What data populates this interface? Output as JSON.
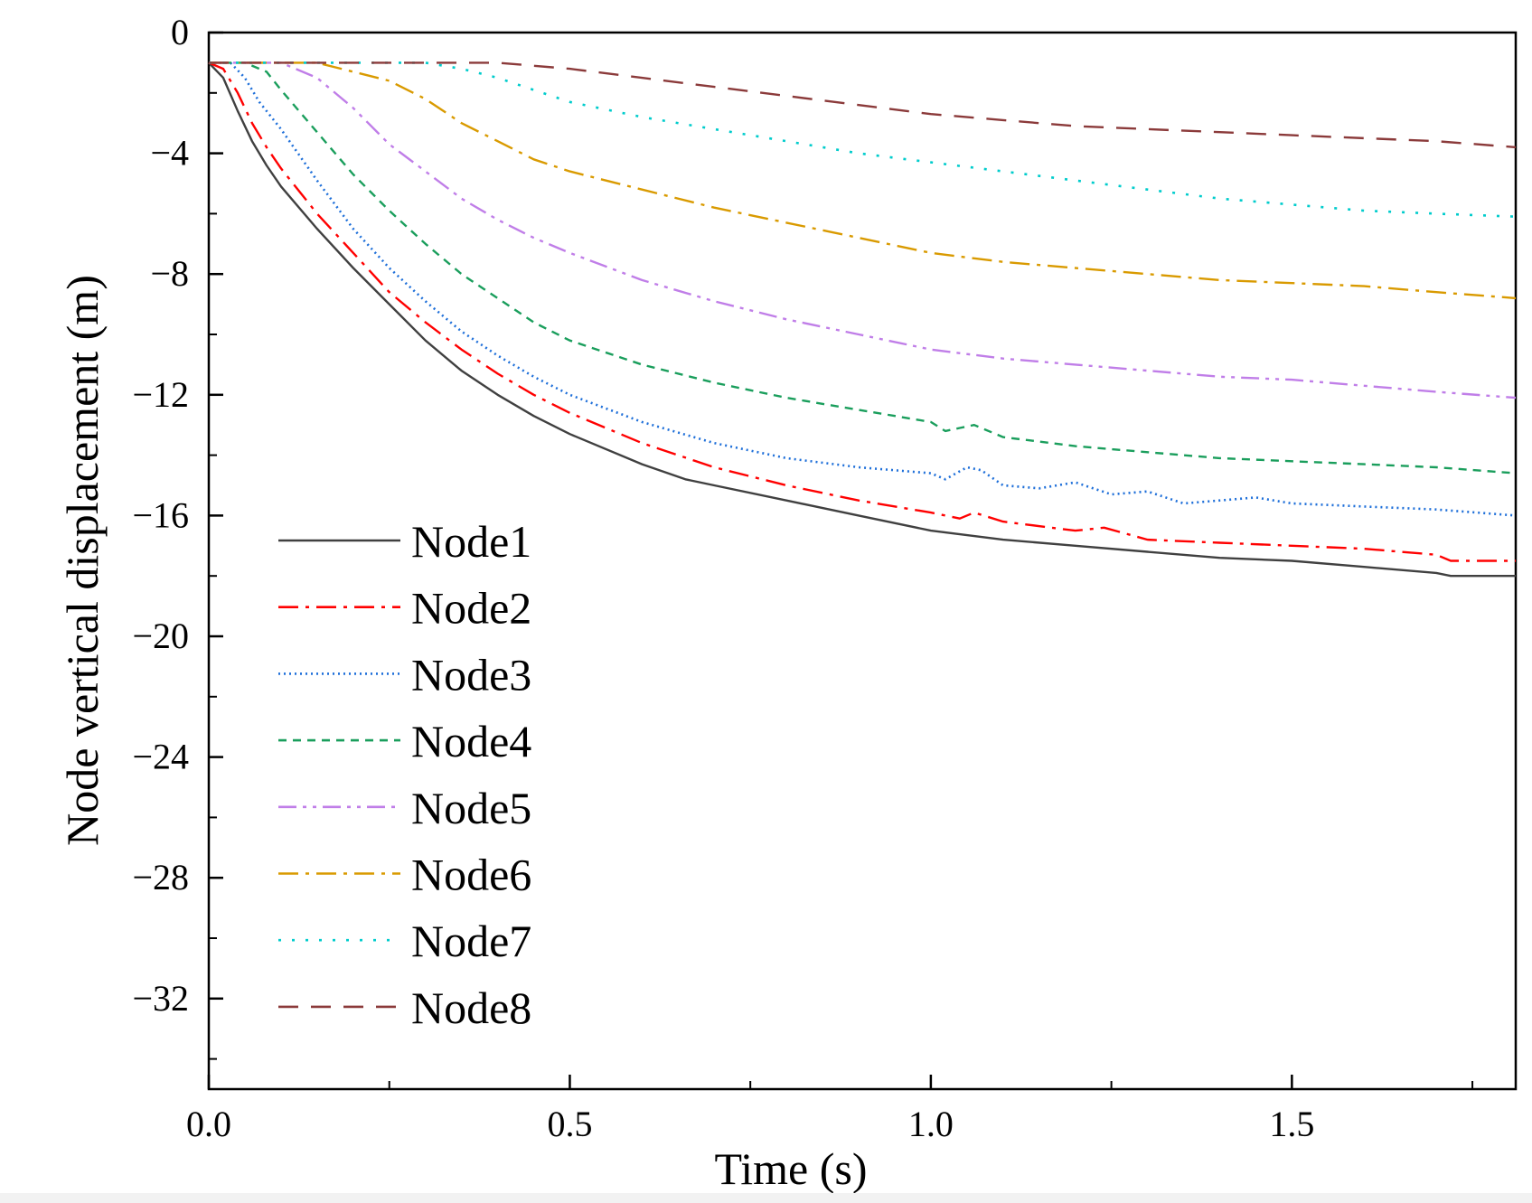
{
  "chart_data": {
    "type": "line",
    "title": "",
    "xlabel": "Time (s)",
    "ylabel": "Node vertical displacement (m)",
    "xlim": [
      0.0,
      1.81
    ],
    "ylim": [
      -35,
      0
    ],
    "x_ticks": [
      0.0,
      0.5,
      1.0,
      1.5
    ],
    "x_tick_labels": [
      "0.0",
      "0.5",
      "1.0",
      "1.5"
    ],
    "y_ticks": [
      0,
      -4,
      -8,
      -12,
      -16,
      -20,
      -24,
      -28,
      -32
    ],
    "y_tick_labels": [
      "0",
      "−4",
      "−8",
      "−12",
      "−16",
      "−20",
      "−24",
      "−28",
      "−32"
    ],
    "legend_position": "left",
    "series": [
      {
        "name": "Node1",
        "color": "#404040",
        "dash": "solid",
        "x": [
          0,
          0.02,
          0.04,
          0.06,
          0.08,
          0.1,
          0.15,
          0.2,
          0.25,
          0.3,
          0.35,
          0.4,
          0.45,
          0.5,
          0.6,
          0.66,
          0.7,
          0.8,
          0.9,
          1.0,
          1.1,
          1.2,
          1.3,
          1.4,
          1.5,
          1.6,
          1.7,
          1.72,
          1.81
        ],
        "y": [
          -1,
          -1.5,
          -2.6,
          -3.6,
          -4.4,
          -5.1,
          -6.5,
          -7.8,
          -9.0,
          -10.2,
          -11.2,
          -12.0,
          -12.7,
          -13.3,
          -14.3,
          -14.8,
          -15.0,
          -15.5,
          -16.0,
          -16.5,
          -16.8,
          -17.0,
          -17.2,
          -17.4,
          -17.5,
          -17.7,
          -17.9,
          -18.0,
          -18.0
        ]
      },
      {
        "name": "Node2",
        "color": "#ff0000",
        "dash": "dashdot",
        "x": [
          0,
          0.02,
          0.04,
          0.06,
          0.08,
          0.1,
          0.15,
          0.2,
          0.25,
          0.3,
          0.35,
          0.4,
          0.45,
          0.5,
          0.6,
          0.7,
          0.8,
          0.9,
          1.0,
          1.04,
          1.06,
          1.1,
          1.2,
          1.24,
          1.3,
          1.4,
          1.5,
          1.6,
          1.7,
          1.72,
          1.81
        ],
        "y": [
          -1,
          -1.2,
          -2.0,
          -3.0,
          -3.8,
          -4.5,
          -6.0,
          -7.3,
          -8.6,
          -9.6,
          -10.5,
          -11.3,
          -12.0,
          -12.6,
          -13.6,
          -14.4,
          -15.0,
          -15.5,
          -15.9,
          -16.1,
          -15.9,
          -16.2,
          -16.5,
          -16.4,
          -16.8,
          -16.9,
          -17.0,
          -17.1,
          -17.3,
          -17.5,
          -17.5
        ]
      },
      {
        "name": "Node3",
        "color": "#1e6fd9",
        "dash": "dotted",
        "x": [
          0,
          0.03,
          0.05,
          0.07,
          0.1,
          0.15,
          0.2,
          0.25,
          0.3,
          0.35,
          0.4,
          0.45,
          0.5,
          0.6,
          0.7,
          0.8,
          0.9,
          1.0,
          1.02,
          1.05,
          1.07,
          1.1,
          1.15,
          1.2,
          1.25,
          1.3,
          1.35,
          1.4,
          1.45,
          1.5,
          1.6,
          1.7,
          1.81
        ],
        "y": [
          -1,
          -1.0,
          -1.5,
          -2.3,
          -3.2,
          -4.9,
          -6.5,
          -7.8,
          -8.9,
          -9.9,
          -10.7,
          -11.4,
          -12.0,
          -12.9,
          -13.6,
          -14.1,
          -14.4,
          -14.6,
          -14.8,
          -14.4,
          -14.5,
          -15.0,
          -15.1,
          -14.9,
          -15.3,
          -15.2,
          -15.6,
          -15.5,
          -15.4,
          -15.6,
          -15.7,
          -15.8,
          -16.0
        ]
      },
      {
        "name": "Node4",
        "color": "#1a9e5c",
        "dash": "dashed",
        "x": [
          0,
          0.05,
          0.08,
          0.1,
          0.15,
          0.2,
          0.25,
          0.3,
          0.35,
          0.4,
          0.45,
          0.5,
          0.6,
          0.7,
          0.8,
          0.9,
          1.0,
          1.02,
          1.04,
          1.06,
          1.1,
          1.2,
          1.3,
          1.4,
          1.5,
          1.6,
          1.7,
          1.81
        ],
        "y": [
          -1,
          -1.0,
          -1.3,
          -1.9,
          -3.3,
          -4.7,
          -5.9,
          -7.0,
          -8.0,
          -8.8,
          -9.6,
          -10.2,
          -11.0,
          -11.6,
          -12.1,
          -12.5,
          -12.9,
          -13.2,
          -13.1,
          -13.0,
          -13.4,
          -13.7,
          -13.9,
          -14.1,
          -14.2,
          -14.3,
          -14.4,
          -14.6
        ]
      },
      {
        "name": "Node5",
        "color": "#c07ee8",
        "dash": "dashdotdot",
        "x": [
          0,
          0.1,
          0.15,
          0.2,
          0.25,
          0.3,
          0.35,
          0.4,
          0.45,
          0.5,
          0.6,
          0.7,
          0.8,
          0.9,
          1.0,
          1.1,
          1.2,
          1.3,
          1.4,
          1.5,
          1.6,
          1.7,
          1.81
        ],
        "y": [
          -1,
          -1.0,
          -1.5,
          -2.5,
          -3.7,
          -4.6,
          -5.5,
          -6.2,
          -6.8,
          -7.3,
          -8.2,
          -8.9,
          -9.5,
          -10.0,
          -10.5,
          -10.8,
          -11.0,
          -11.2,
          -11.4,
          -11.5,
          -11.7,
          -11.9,
          -12.1
        ]
      },
      {
        "name": "Node6",
        "color": "#d99a00",
        "dash": "dashdot",
        "x": [
          0,
          0.15,
          0.2,
          0.25,
          0.3,
          0.35,
          0.4,
          0.45,
          0.5,
          0.6,
          0.7,
          0.8,
          0.9,
          1.0,
          1.1,
          1.2,
          1.3,
          1.4,
          1.5,
          1.6,
          1.7,
          1.81
        ],
        "y": [
          -1,
          -1.0,
          -1.3,
          -1.6,
          -2.2,
          -3.0,
          -3.6,
          -4.2,
          -4.6,
          -5.2,
          -5.8,
          -6.3,
          -6.8,
          -7.3,
          -7.6,
          -7.8,
          -8.0,
          -8.2,
          -8.3,
          -8.4,
          -8.6,
          -8.8
        ]
      },
      {
        "name": "Node7",
        "color": "#00cccc",
        "dash": "spacedot",
        "x": [
          0,
          0.3,
          0.35,
          0.4,
          0.45,
          0.5,
          0.6,
          0.7,
          0.8,
          0.9,
          1.0,
          1.1,
          1.2,
          1.3,
          1.4,
          1.5,
          1.6,
          1.7,
          1.81
        ],
        "y": [
          -1,
          -1.0,
          -1.2,
          -1.5,
          -1.9,
          -2.3,
          -2.8,
          -3.2,
          -3.6,
          -4.0,
          -4.3,
          -4.6,
          -4.9,
          -5.2,
          -5.5,
          -5.7,
          -5.9,
          -6.0,
          -6.1
        ]
      },
      {
        "name": "Node8",
        "color": "#8b3a3a",
        "dash": "longdash",
        "x": [
          0,
          0.4,
          0.5,
          0.6,
          0.7,
          0.8,
          0.9,
          1.0,
          1.1,
          1.2,
          1.3,
          1.4,
          1.5,
          1.6,
          1.7,
          1.81
        ],
        "y": [
          -1,
          -1.0,
          -1.2,
          -1.5,
          -1.8,
          -2.1,
          -2.4,
          -2.7,
          -2.9,
          -3.1,
          -3.2,
          -3.3,
          -3.4,
          -3.5,
          -3.6,
          -3.8
        ]
      }
    ]
  }
}
